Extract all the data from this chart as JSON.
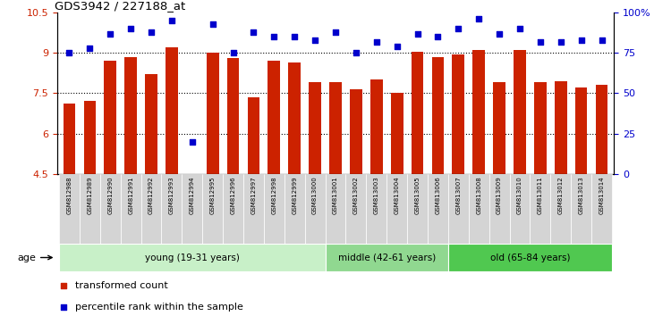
{
  "title": "GDS3942 / 227188_at",
  "samples": [
    "GSM812988",
    "GSM812989",
    "GSM812990",
    "GSM812991",
    "GSM812992",
    "GSM812993",
    "GSM812994",
    "GSM812995",
    "GSM812996",
    "GSM812997",
    "GSM812998",
    "GSM812999",
    "GSM813000",
    "GSM813001",
    "GSM813002",
    "GSM813003",
    "GSM813004",
    "GSM813005",
    "GSM813006",
    "GSM813007",
    "GSM813008",
    "GSM813009",
    "GSM813010",
    "GSM813011",
    "GSM813012",
    "GSM813013",
    "GSM813014"
  ],
  "bar_values": [
    7.1,
    7.2,
    8.7,
    8.85,
    8.2,
    9.2,
    4.5,
    9.0,
    8.8,
    7.35,
    8.7,
    8.65,
    7.9,
    7.9,
    7.65,
    8.0,
    7.5,
    9.05,
    8.85,
    8.95,
    9.1,
    7.9,
    9.1,
    7.9,
    7.95,
    7.7,
    7.8
  ],
  "dot_values": [
    75,
    78,
    87,
    90,
    88,
    95,
    20,
    93,
    75,
    88,
    85,
    85,
    83,
    88,
    75,
    82,
    79,
    87,
    85,
    90,
    96,
    87,
    90,
    82,
    82,
    83,
    83
  ],
  "bar_color": "#cc2200",
  "dot_color": "#0000cc",
  "ylim_left": [
    4.5,
    10.5
  ],
  "ylim_right": [
    0,
    100
  ],
  "yticks_left": [
    4.5,
    6.0,
    7.5,
    9.0,
    10.5
  ],
  "yticks_right": [
    0,
    25,
    50,
    75,
    100
  ],
  "ytick_labels_right": [
    "0",
    "25",
    "50",
    "75",
    "100%"
  ],
  "hlines": [
    6.0,
    7.5,
    9.0
  ],
  "groups": [
    {
      "label": "young (19-31 years)",
      "start": 0,
      "end": 13,
      "color": "#c8f0c8"
    },
    {
      "label": "middle (42-61 years)",
      "start": 13,
      "end": 19,
      "color": "#90d890"
    },
    {
      "label": "old (65-84 years)",
      "start": 19,
      "end": 27,
      "color": "#50c850"
    }
  ],
  "legend_items": [
    {
      "label": "transformed count",
      "color": "#cc2200",
      "marker": "s"
    },
    {
      "label": "percentile rank within the sample",
      "color": "#0000cc",
      "marker": "s"
    }
  ],
  "age_label": "age",
  "bar_width": 0.6,
  "xticklabel_bg": "#d4d4d4"
}
